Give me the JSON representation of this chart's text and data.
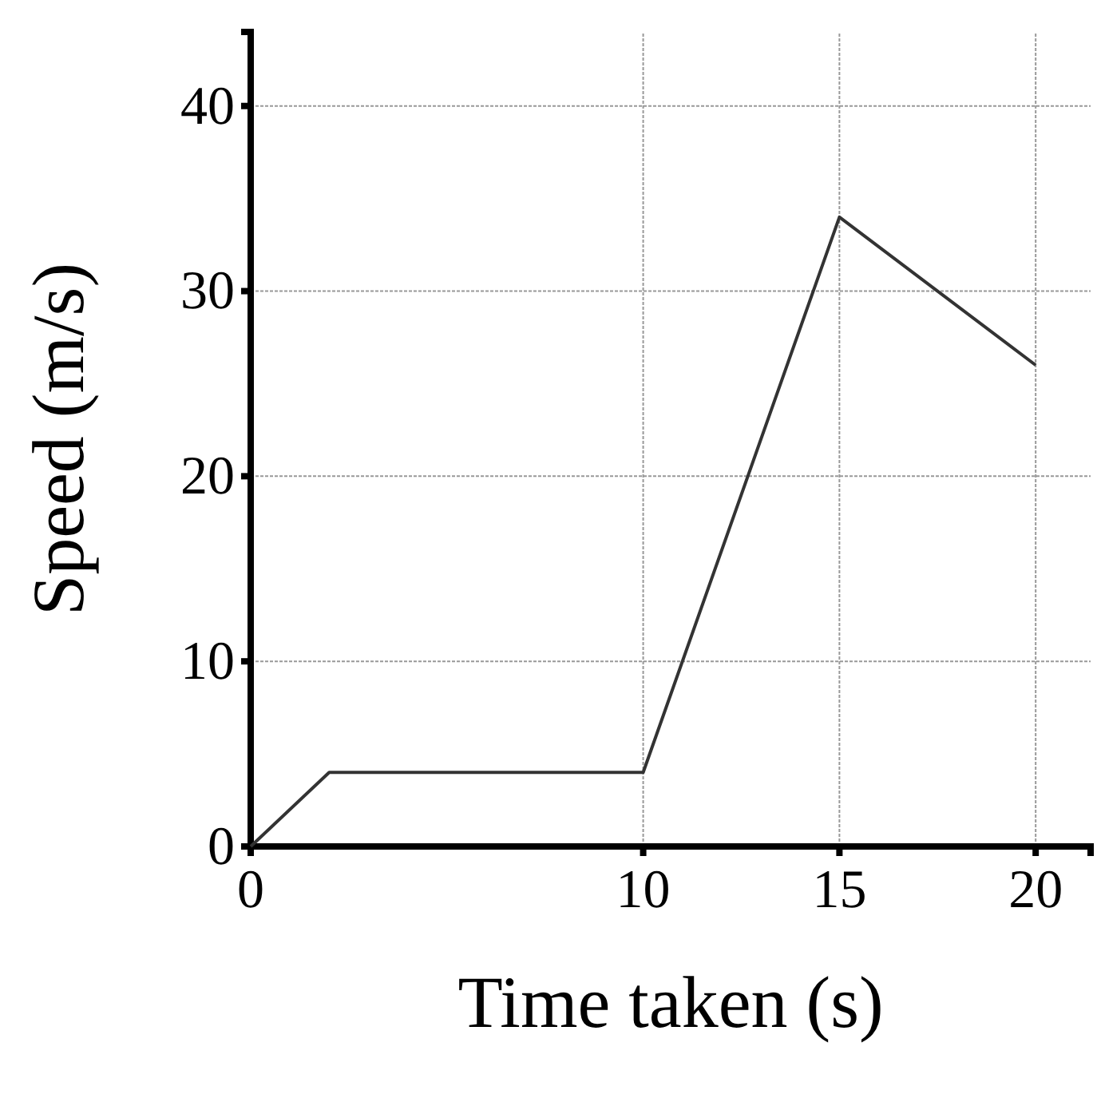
{
  "chart_data": {
    "type": "line",
    "xlabel": "Time taken (s)",
    "ylabel": "Speed (m/s)",
    "x": [
      0,
      2,
      10,
      15,
      20
    ],
    "series": [
      {
        "color": "#333333",
        "values": [
          0,
          4,
          4,
          34,
          26
        ]
      }
    ],
    "xlim": [
      0,
      21.4
    ],
    "ylim": [
      0,
      44
    ],
    "xticks": [
      0,
      10,
      15,
      20
    ],
    "yticks": [
      0,
      10,
      20,
      30,
      40
    ],
    "grid": true,
    "marker": "none",
    "line_style": "solid"
  }
}
